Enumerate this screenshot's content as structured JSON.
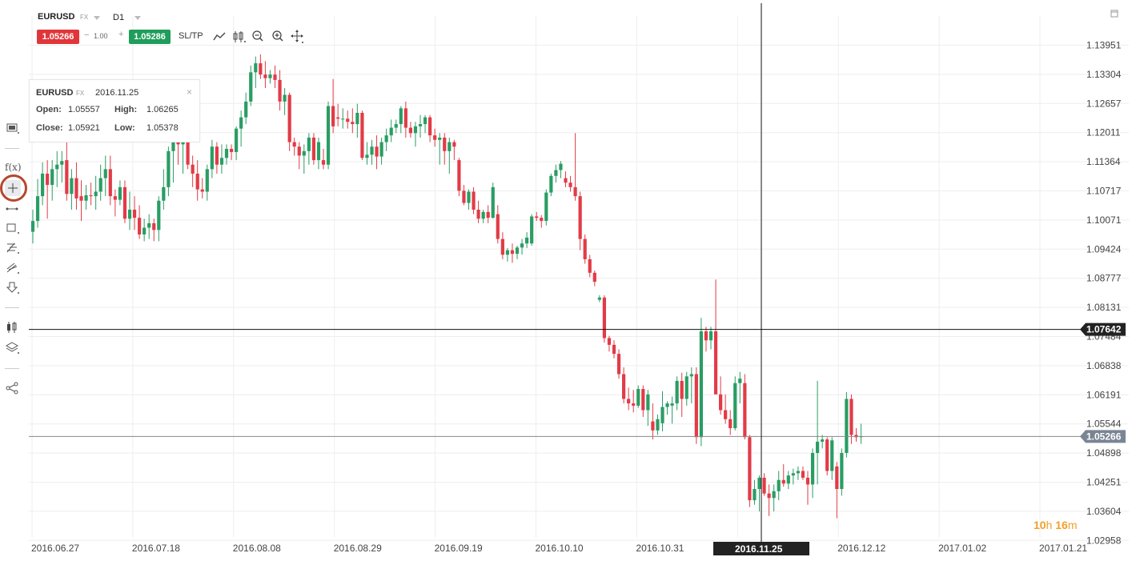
{
  "header": {
    "symbol": "EURUSD",
    "symbol_type": "FX",
    "timeframe": "D1",
    "sell_price": "1.05266",
    "quantity": "1.00",
    "buy_price": "1.05286",
    "sltp_label": "SL/TP",
    "qty_minus": "−",
    "qty_plus": "+"
  },
  "toolbar_icons": [
    "line-chart-icon",
    "candles-icon",
    "zoom-out-icon",
    "zoom-in-icon",
    "move-icon"
  ],
  "left_toolbar": [
    "screenshot-icon",
    "indicator-fx-icon",
    "crosshair-icon",
    "trendline-icon",
    "rectangle-icon",
    "fibonacci-icon",
    "pitchfork-icon",
    "arrow-down-icon",
    "candle-settings-icon",
    "layers-icon",
    "share-icon"
  ],
  "fx_label": "f(x)",
  "infobox": {
    "symbol": "EURUSD",
    "type": "FX",
    "date": "2016.11.25",
    "open_label": "Open:",
    "open": "1.05557",
    "high_label": "High:",
    "high": "1.06265",
    "close_label": "Close:",
    "close": "1.05921",
    "low_label": "Low:",
    "low": "1.05378",
    "close_btn": "×"
  },
  "countdown": {
    "hours": "10",
    "h": "h",
    "minutes": "16",
    "m": "m"
  },
  "colors": {
    "bull": "#2a9d64",
    "bear": "#e23b47",
    "crosshair": "#111111",
    "price_line": "#888888",
    "current_price_tag": "#7a8593",
    "crosshair_tag": "#222222",
    "countdown": "#f0a02a"
  },
  "chart_data": {
    "type": "candlestick",
    "symbol": "EURUSD",
    "timeframe": "D1",
    "y_ticks": [
      "1.13951",
      "1.13304",
      "1.12657",
      "1.12011",
      "1.11364",
      "1.10717",
      "1.10071",
      "1.09424",
      "1.08777",
      "1.08131",
      "1.07484",
      "1.06838",
      "1.06191",
      "1.05544",
      "1.04898",
      "1.04251",
      "1.03604",
      "1.02958"
    ],
    "x_ticks": [
      "2016.06.27",
      "2016.07.18",
      "2016.08.08",
      "2016.08.29",
      "2016.09.19",
      "2016.10.10",
      "2016.10.31",
      "2016.11.25",
      "2016.12.12",
      "2017.01.02",
      "2017.01.21"
    ],
    "crosshair_date": "2016.11.25",
    "crosshair_price": "1.07642",
    "current_price": "1.05266",
    "ylim": [
      1.0296,
      1.142
    ],
    "candles_ohlc": [
      [
        1.0981,
        1.103,
        1.0955,
        1.1005
      ],
      [
        1.1005,
        1.1098,
        1.099,
        1.106
      ],
      [
        1.106,
        1.1135,
        1.104,
        1.111
      ],
      [
        1.111,
        1.114,
        1.101,
        1.1085
      ],
      [
        1.1085,
        1.114,
        1.105,
        1.112
      ],
      [
        1.112,
        1.116,
        1.108,
        1.113
      ],
      [
        1.113,
        1.116,
        1.109,
        1.1138
      ],
      [
        1.114,
        1.1182,
        1.105,
        1.1065
      ],
      [
        1.1065,
        1.112,
        1.103,
        1.11
      ],
      [
        1.11,
        1.1135,
        1.103,
        1.1055
      ],
      [
        1.106,
        1.1095,
        1.1005,
        1.105
      ],
      [
        1.105,
        1.1085,
        1.103,
        1.1062
      ],
      [
        1.1062,
        1.109,
        1.104,
        1.106
      ],
      [
        1.106,
        1.1105,
        1.103,
        1.107
      ],
      [
        1.107,
        1.113,
        1.105,
        1.11
      ],
      [
        1.11,
        1.115,
        1.106,
        1.112
      ],
      [
        1.112,
        1.115,
        1.104,
        1.106
      ],
      [
        1.106,
        1.1075,
        1.1015,
        1.1052
      ],
      [
        1.1052,
        1.1095,
        1.104,
        1.108
      ],
      [
        1.108,
        1.1095,
        1.1,
        1.101
      ],
      [
        1.101,
        1.107,
        1.0985,
        1.103
      ],
      [
        1.103,
        1.106,
        1.0985,
        1.1012
      ],
      [
        1.1012,
        1.104,
        1.0965,
        1.0975
      ],
      [
        1.0975,
        1.101,
        1.096,
        1.099
      ],
      [
        1.099,
        1.102,
        1.0965,
        1.1
      ],
      [
        1.1,
        1.101,
        1.096,
        1.0985
      ],
      [
        1.0985,
        1.106,
        1.096,
        1.105
      ],
      [
        1.105,
        1.112,
        1.103,
        1.108
      ],
      [
        1.108,
        1.117,
        1.106,
        1.116
      ],
      [
        1.116,
        1.1185,
        1.109,
        1.118
      ],
      [
        1.118,
        1.119,
        1.113,
        1.1175
      ],
      [
        1.1175,
        1.1215,
        1.111,
        1.1205
      ],
      [
        1.1205,
        1.1215,
        1.112,
        1.113
      ],
      [
        1.113,
        1.115,
        1.108,
        1.111
      ],
      [
        1.111,
        1.114,
        1.105,
        1.1075
      ],
      [
        1.1075,
        1.11,
        1.1055,
        1.107
      ],
      [
        1.107,
        1.113,
        1.105,
        1.112
      ],
      [
        1.112,
        1.1185,
        1.11,
        1.117
      ],
      [
        1.117,
        1.118,
        1.111,
        1.113
      ],
      [
        1.113,
        1.1175,
        1.111,
        1.1145
      ],
      [
        1.1145,
        1.1175,
        1.113,
        1.1165
      ],
      [
        1.1165,
        1.1175,
        1.114,
        1.1158
      ],
      [
        1.1158,
        1.1215,
        1.114,
        1.121
      ],
      [
        1.121,
        1.125,
        1.117,
        1.1235
      ],
      [
        1.1235,
        1.129,
        1.122,
        1.127
      ],
      [
        1.127,
        1.135,
        1.126,
        1.1335
      ],
      [
        1.1335,
        1.137,
        1.13,
        1.1355
      ],
      [
        1.1355,
        1.1375,
        1.132,
        1.133
      ],
      [
        1.133,
        1.136,
        1.13,
        1.1322
      ],
      [
        1.1322,
        1.134,
        1.131,
        1.133
      ],
      [
        1.133,
        1.135,
        1.13,
        1.1318
      ],
      [
        1.1318,
        1.134,
        1.125,
        1.127
      ],
      [
        1.127,
        1.13,
        1.124,
        1.1285
      ],
      [
        1.1285,
        1.129,
        1.116,
        1.118
      ],
      [
        1.118,
        1.119,
        1.115,
        1.117
      ],
      [
        1.117,
        1.118,
        1.112,
        1.115
      ],
      [
        1.115,
        1.1175,
        1.111,
        1.116
      ],
      [
        1.116,
        1.12,
        1.113,
        1.119
      ],
      [
        1.119,
        1.12,
        1.113,
        1.114
      ],
      [
        1.114,
        1.119,
        1.112,
        1.118
      ],
      [
        1.114,
        1.1165,
        1.112,
        1.113
      ],
      [
        1.113,
        1.127,
        1.112,
        1.126
      ],
      [
        1.126,
        1.132,
        1.12,
        1.1215
      ],
      [
        1.1235,
        1.1265,
        1.1215,
        1.1232
      ],
      [
        1.1232,
        1.1255,
        1.121,
        1.1232
      ],
      [
        1.1232,
        1.125,
        1.121,
        1.1225
      ],
      [
        1.1225,
        1.1255,
        1.12,
        1.122
      ],
      [
        1.122,
        1.1265,
        1.119,
        1.1245
      ],
      [
        1.1245,
        1.125,
        1.114,
        1.1145
      ],
      [
        1.1145,
        1.118,
        1.113,
        1.1152
      ],
      [
        1.1152,
        1.1185,
        1.113,
        1.117
      ],
      [
        1.117,
        1.1195,
        1.112,
        1.1148
      ],
      [
        1.1148,
        1.119,
        1.113,
        1.118
      ],
      [
        1.118,
        1.121,
        1.116,
        1.1195
      ],
      [
        1.1195,
        1.123,
        1.118,
        1.1212
      ],
      [
        1.1212,
        1.123,
        1.12,
        1.122
      ],
      [
        1.122,
        1.126,
        1.12,
        1.1255
      ],
      [
        1.1255,
        1.127,
        1.119,
        1.1212
      ],
      [
        1.1212,
        1.1225,
        1.119,
        1.12
      ],
      [
        1.12,
        1.1225,
        1.117,
        1.1215
      ],
      [
        1.1215,
        1.124,
        1.119,
        1.122
      ],
      [
        1.122,
        1.124,
        1.12,
        1.1235
      ],
      [
        1.1235,
        1.124,
        1.118,
        1.1195
      ],
      [
        1.1195,
        1.121,
        1.117,
        1.1185
      ],
      [
        1.1185,
        1.12,
        1.113,
        1.119
      ],
      [
        1.119,
        1.12,
        1.113,
        1.116
      ],
      [
        1.116,
        1.119,
        1.111,
        1.118
      ],
      [
        1.118,
        1.1185,
        1.114,
        1.117
      ],
      [
        1.114,
        1.1145,
        1.106,
        1.1072
      ],
      [
        1.1072,
        1.1085,
        1.104,
        1.1045
      ],
      [
        1.1045,
        1.1075,
        1.103,
        1.107
      ],
      [
        1.107,
        1.108,
        1.102,
        1.103
      ],
      [
        1.103,
        1.105,
        1.1,
        1.101
      ],
      [
        1.101,
        1.103,
        1.1,
        1.1025
      ],
      [
        1.1025,
        1.104,
        1.1,
        1.1012
      ],
      [
        1.1012,
        1.109,
        1.101,
        1.108
      ],
      [
        1.102,
        1.104,
        1.0955,
        1.0965
      ],
      [
        1.0965,
        1.098,
        1.092,
        1.093
      ],
      [
        1.093,
        1.0945,
        1.0915,
        1.094
      ],
      [
        1.094,
        1.0955,
        1.0912,
        1.0932
      ],
      [
        1.0932,
        1.095,
        1.092,
        1.0946
      ],
      [
        1.0946,
        1.0965,
        1.093,
        1.0955
      ],
      [
        1.0955,
        1.098,
        1.0945,
        1.0968
      ],
      [
        1.0955,
        1.102,
        1.095,
        1.1015
      ],
      [
        1.1015,
        1.1025,
        1.1005,
        1.1012
      ],
      [
        1.1012,
        1.1018,
        1.099,
        1.1005
      ],
      [
        1.1005,
        1.1075,
        1.0995,
        1.1068
      ],
      [
        1.1068,
        1.111,
        1.106,
        1.1105
      ],
      [
        1.1105,
        1.113,
        1.109,
        1.1118
      ],
      [
        1.1118,
        1.1138,
        1.11,
        1.1132
      ],
      [
        1.11,
        1.1115,
        1.108,
        1.109
      ],
      [
        1.109,
        1.1105,
        1.107,
        1.108
      ],
      [
        1.108,
        1.12,
        1.105,
        1.106
      ],
      [
        1.106,
        1.107,
        1.094,
        1.0965
      ],
      [
        1.0965,
        1.0975,
        1.091,
        1.092
      ],
      [
        1.092,
        1.093,
        1.088,
        1.089
      ],
      [
        1.089,
        1.0895,
        1.086,
        1.087
      ],
      [
        1.083,
        1.084,
        1.0825,
        1.0835
      ],
      [
        1.0835,
        1.084,
        1.0735,
        1.0745
      ],
      [
        1.0745,
        1.075,
        1.0715,
        1.073
      ],
      [
        1.073,
        1.074,
        1.07,
        1.071
      ],
      [
        1.071,
        1.072,
        1.0655,
        1.0665
      ],
      [
        1.0665,
        1.068,
        1.06,
        1.061
      ],
      [
        1.061,
        1.0635,
        1.0585,
        1.06
      ],
      [
        1.06,
        1.063,
        1.058,
        1.0595
      ],
      [
        1.0595,
        1.064,
        1.059,
        1.0632
      ],
      [
        1.0632,
        1.064,
        1.057,
        1.0585
      ],
      [
        1.0585,
        1.063,
        1.055,
        1.062
      ],
      [
        1.056,
        1.06,
        1.052,
        1.054
      ],
      [
        1.054,
        1.0575,
        1.053,
        1.0565
      ],
      [
        1.0556,
        1.0627,
        1.0538,
        1.0592
      ],
      [
        1.0592,
        1.0605,
        1.0575,
        1.06
      ],
      [
        1.0595,
        1.0615,
        1.0555,
        1.06
      ],
      [
        1.06,
        1.066,
        1.0585,
        1.065
      ],
      [
        1.065,
        1.0668,
        1.057,
        1.061
      ],
      [
        1.061,
        1.067,
        1.0595,
        1.066
      ],
      [
        1.066,
        1.068,
        1.06,
        1.0665
      ],
      [
        1.0665,
        1.068,
        1.051,
        1.0525
      ],
      [
        1.0525,
        1.079,
        1.0505,
        1.076
      ],
      [
        1.076,
        1.077,
        1.0715,
        1.074
      ],
      [
        1.074,
        1.077,
        1.072,
        1.076
      ],
      [
        1.076,
        1.0875,
        1.0705,
        1.062
      ],
      [
        1.062,
        1.066,
        1.0575,
        1.0585
      ],
      [
        1.0585,
        1.062,
        1.0555,
        1.0565
      ],
      [
        1.0565,
        1.0585,
        1.053,
        1.0545
      ],
      [
        1.0545,
        1.066,
        1.054,
        1.0645
      ],
      [
        1.0645,
        1.067,
        1.06,
        1.0655
      ],
      [
        1.0645,
        1.0665,
        1.052,
        1.0525
      ],
      [
        1.0525,
        1.053,
        1.037,
        1.0385
      ],
      [
        1.0385,
        1.043,
        1.0375,
        1.041
      ],
      [
        1.041,
        1.044,
        1.036,
        1.0435
      ],
      [
        1.0435,
        1.0445,
        1.0395,
        1.04
      ],
      [
        1.04,
        1.042,
        1.035,
        1.039
      ],
      [
        1.039,
        1.042,
        1.036,
        1.0405
      ],
      [
        1.0405,
        1.045,
        1.0385,
        1.043
      ],
      [
        1.043,
        1.0465,
        1.0415,
        1.0422
      ],
      [
        1.0422,
        1.045,
        1.041,
        1.044
      ],
      [
        1.044,
        1.0455,
        1.042,
        1.0445
      ],
      [
        1.0445,
        1.046,
        1.043,
        1.045
      ],
      [
        1.045,
        1.046,
        1.043,
        1.0435
      ],
      [
        1.0435,
        1.045,
        1.0375,
        1.042
      ],
      [
        1.042,
        1.05,
        1.039,
        1.049
      ],
      [
        1.049,
        1.065,
        1.042,
        1.0515
      ],
      [
        1.0515,
        1.053,
        1.05,
        1.052
      ],
      [
        1.052,
        1.0525,
        1.044,
        1.045
      ],
      [
        1.045,
        1.0525,
        1.043,
        1.0518
      ],
      [
        1.046,
        1.047,
        1.0345,
        1.041
      ],
      [
        1.041,
        1.05,
        1.0395,
        1.049
      ],
      [
        1.049,
        1.0625,
        1.048,
        1.061
      ],
      [
        1.061,
        1.062,
        1.051,
        1.053
      ],
      [
        1.053,
        1.0545,
        1.0515,
        1.0525
      ],
      [
        1.0525,
        1.0555,
        1.051,
        1.0527
      ]
    ]
  }
}
